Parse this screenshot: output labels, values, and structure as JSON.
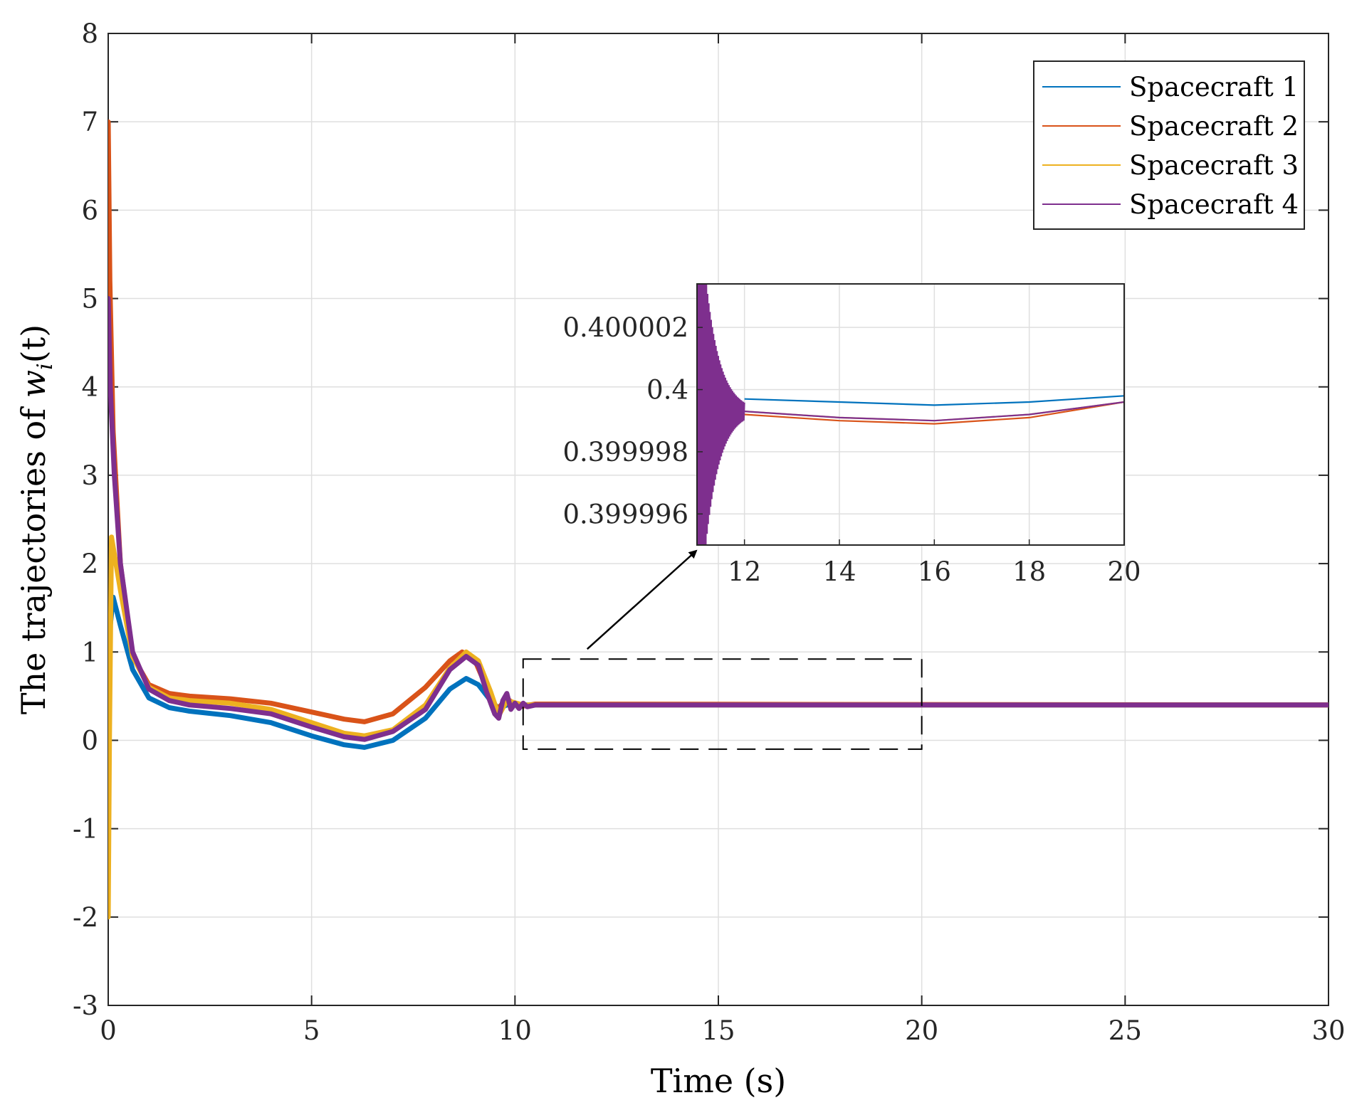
{
  "chart_data": {
    "type": "line",
    "title": "",
    "xlabel": "Time (s)",
    "ylabel_text": "The trajectories of ",
    "ylabel_math": "w",
    "ylabel_sub": "i",
    "ylabel_arg": "(t)",
    "xlim": [
      0,
      30
    ],
    "ylim": [
      -3,
      8
    ],
    "xticks": [
      0,
      5,
      10,
      15,
      20,
      25,
      30
    ],
    "yticks": [
      -3,
      -2,
      -1,
      0,
      1,
      2,
      3,
      4,
      5,
      6,
      7,
      8
    ],
    "grid": true,
    "legend_position": "top-right",
    "series": [
      {
        "name": "Spacecraft 1",
        "color": "#0072BD",
        "points": [
          [
            0,
            0
          ],
          [
            0.03,
            1.2
          ],
          [
            0.12,
            1.62
          ],
          [
            0.3,
            1.3
          ],
          [
            0.6,
            0.8
          ],
          [
            1.0,
            0.48
          ],
          [
            1.5,
            0.37
          ],
          [
            2.0,
            0.33
          ],
          [
            3.0,
            0.28
          ],
          [
            4.0,
            0.2
          ],
          [
            5.0,
            0.05
          ],
          [
            5.8,
            -0.05
          ],
          [
            6.3,
            -0.08
          ],
          [
            7.0,
            0.0
          ],
          [
            7.8,
            0.25
          ],
          [
            8.4,
            0.58
          ],
          [
            8.8,
            0.7
          ],
          [
            9.1,
            0.63
          ],
          [
            9.4,
            0.45
          ],
          [
            9.6,
            0.36
          ],
          [
            9.8,
            0.4
          ],
          [
            10.2,
            0.4
          ],
          [
            30,
            0.4
          ]
        ]
      },
      {
        "name": "Spacecraft 2",
        "color": "#D95319",
        "points": [
          [
            0,
            7.0
          ],
          [
            0.04,
            5.2
          ],
          [
            0.12,
            3.5
          ],
          [
            0.3,
            2.0
          ],
          [
            0.6,
            0.95
          ],
          [
            1.0,
            0.63
          ],
          [
            1.5,
            0.53
          ],
          [
            2.0,
            0.5
          ],
          [
            3.0,
            0.47
          ],
          [
            4.0,
            0.42
          ],
          [
            5.0,
            0.32
          ],
          [
            5.8,
            0.24
          ],
          [
            6.3,
            0.21
          ],
          [
            7.0,
            0.3
          ],
          [
            7.8,
            0.6
          ],
          [
            8.4,
            0.9
          ],
          [
            8.7,
            1.0
          ],
          [
            9.0,
            0.92
          ],
          [
            9.3,
            0.6
          ],
          [
            9.5,
            0.32
          ],
          [
            9.8,
            0.47
          ],
          [
            10.1,
            0.38
          ],
          [
            10.5,
            0.41
          ],
          [
            30,
            0.4
          ]
        ]
      },
      {
        "name": "Spacecraft 3",
        "color": "#EDB120",
        "points": [
          [
            0,
            -2.0
          ],
          [
            0.03,
            0.0
          ],
          [
            0.08,
            2.3
          ],
          [
            0.3,
            1.7
          ],
          [
            0.6,
            0.95
          ],
          [
            1.0,
            0.6
          ],
          [
            1.5,
            0.48
          ],
          [
            2.0,
            0.45
          ],
          [
            3.0,
            0.42
          ],
          [
            4.0,
            0.35
          ],
          [
            5.0,
            0.2
          ],
          [
            5.8,
            0.08
          ],
          [
            6.3,
            0.05
          ],
          [
            7.0,
            0.12
          ],
          [
            7.8,
            0.4
          ],
          [
            8.4,
            0.82
          ],
          [
            8.8,
            1.0
          ],
          [
            9.1,
            0.9
          ],
          [
            9.4,
            0.55
          ],
          [
            9.6,
            0.28
          ],
          [
            9.8,
            0.45
          ],
          [
            10.2,
            0.4
          ],
          [
            30,
            0.4
          ]
        ]
      },
      {
        "name": "Spacecraft 4",
        "color": "#7E2F8E",
        "points": [
          [
            0,
            5.0
          ],
          [
            0.05,
            4.0
          ],
          [
            0.15,
            3.0
          ],
          [
            0.3,
            2.0
          ],
          [
            0.6,
            1.0
          ],
          [
            1.0,
            0.58
          ],
          [
            1.5,
            0.45
          ],
          [
            2.0,
            0.4
          ],
          [
            3.0,
            0.36
          ],
          [
            4.0,
            0.3
          ],
          [
            5.0,
            0.15
          ],
          [
            5.8,
            0.04
          ],
          [
            6.3,
            0.01
          ],
          [
            7.0,
            0.1
          ],
          [
            7.8,
            0.35
          ],
          [
            8.4,
            0.8
          ],
          [
            8.8,
            0.95
          ],
          [
            9.1,
            0.85
          ],
          [
            9.3,
            0.55
          ],
          [
            9.5,
            0.3
          ],
          [
            9.6,
            0.25
          ],
          [
            9.7,
            0.45
          ],
          [
            9.8,
            0.53
          ],
          [
            9.9,
            0.35
          ],
          [
            10.0,
            0.42
          ],
          [
            10.1,
            0.36
          ],
          [
            10.2,
            0.42
          ],
          [
            10.3,
            0.38
          ],
          [
            10.5,
            0.4
          ],
          [
            30,
            0.4
          ]
        ]
      }
    ],
    "zoom_box": {
      "xlim": [
        10.2,
        20.0
      ],
      "ylim": [
        -0.1,
        0.92
      ]
    },
    "inset": {
      "xlim": [
        11,
        20
      ],
      "ylim": [
        0.399995,
        0.4000034
      ],
      "xticks": [
        12,
        14,
        16,
        18,
        20
      ],
      "yticks": [
        0.399996,
        0.399998,
        0.4,
        0.400002
      ],
      "ytick_labels": [
        "0.399996",
        "0.399998",
        "0.4",
        "0.400002"
      ],
      "grid": true,
      "oscillation": {
        "x_start": 11.0,
        "x_end": 12.0,
        "envelope_start": 8e-06,
        "decay": 0.3,
        "cycles": 40
      },
      "series": [
        {
          "name": "Spacecraft 1",
          "color": "#0072BD",
          "points": [
            [
              12,
              0.3999997
            ],
            [
              14,
              0.3999996
            ],
            [
              16,
              0.3999995
            ],
            [
              18,
              0.3999996
            ],
            [
              20,
              0.3999998
            ]
          ]
        },
        {
          "name": "Spacecraft 2",
          "color": "#D95319",
          "points": [
            [
              12,
              0.3999992
            ],
            [
              14,
              0.399999
            ],
            [
              16,
              0.3999989
            ],
            [
              18,
              0.3999991
            ],
            [
              20,
              0.3999996
            ]
          ]
        },
        {
          "name": "Spacecraft 3",
          "color": "#EDB120",
          "points": [
            [
              12,
              0.3999993
            ],
            [
              14,
              0.3999991
            ],
            [
              16,
              0.399999
            ],
            [
              18,
              0.3999992
            ],
            [
              20,
              0.3999996
            ]
          ]
        },
        {
          "name": "Spacecraft 4",
          "color": "#7E2F8E",
          "points": [
            [
              12,
              0.3999993
            ],
            [
              14,
              0.3999991
            ],
            [
              16,
              0.399999
            ],
            [
              18,
              0.3999992
            ],
            [
              20,
              0.3999996
            ]
          ]
        }
      ]
    }
  }
}
